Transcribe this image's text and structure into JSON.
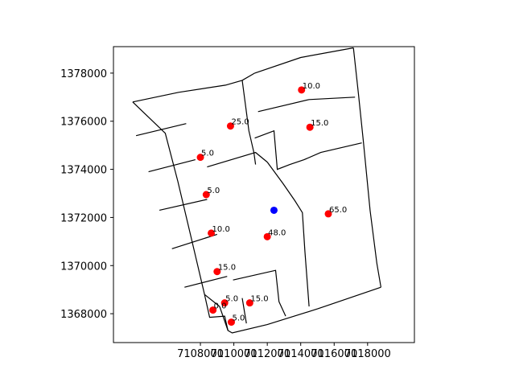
{
  "chart_data": {
    "type": "scatter",
    "title": "",
    "xlabel": "",
    "ylabel": "",
    "xlim": [
      7102800,
      7120800
    ],
    "ylim": [
      1366800,
      1379100
    ],
    "x_ticks": [
      {
        "value": 7108000,
        "label": "7108000"
      },
      {
        "value": 7110000,
        "label": "7110000"
      },
      {
        "value": 7112000,
        "label": "7112000"
      },
      {
        "value": 7114000,
        "label": "7114000"
      },
      {
        "value": 7116000,
        "label": "7116000"
      },
      {
        "value": 7118000,
        "label": "7118000"
      }
    ],
    "y_ticks": [
      {
        "value": 1368000,
        "label": "1368000"
      },
      {
        "value": 1370000,
        "label": "1370000"
      },
      {
        "value": 1372000,
        "label": "1372000"
      },
      {
        "value": 1374000,
        "label": "1374000"
      },
      {
        "value": 1376000,
        "label": "1376000"
      },
      {
        "value": 1378000,
        "label": "1378000"
      }
    ],
    "grid": false,
    "points": [
      {
        "x": 7114050,
        "y": 1377300,
        "label": "10.0"
      },
      {
        "x": 7109800,
        "y": 1375800,
        "label": "25.0"
      },
      {
        "x": 7114550,
        "y": 1375750,
        "label": "15.0"
      },
      {
        "x": 7108000,
        "y": 1374500,
        "label": "5.0"
      },
      {
        "x": 7108350,
        "y": 1372950,
        "label": "5.0"
      },
      {
        "x": 7115650,
        "y": 1372150,
        "label": "65.0"
      },
      {
        "x": 7108650,
        "y": 1371350,
        "label": "10.0"
      },
      {
        "x": 7112000,
        "y": 1371200,
        "label": "48.0"
      },
      {
        "x": 7109000,
        "y": 1369750,
        "label": "15.0"
      },
      {
        "x": 7109450,
        "y": 1368450,
        "label": "5.0"
      },
      {
        "x": 7110950,
        "y": 1368450,
        "label": "15.0"
      },
      {
        "x": 7108750,
        "y": 1368150,
        "label": "0.0"
      },
      {
        "x": 7109850,
        "y": 1367650,
        "label": "5.0"
      }
    ],
    "highlight_point": {
      "x": 7112400,
      "y": 1372300
    },
    "colors": {
      "points": "#ff0000",
      "highlight": "#0000ff",
      "outline": "#000000"
    },
    "boundaries": [
      [
        [
          7103950,
          1376800
        ],
        [
          7106700,
          1377200
        ],
        [
          7109500,
          1377500
        ],
        [
          7110500,
          1377700
        ],
        [
          7111250,
          1378000
        ]
      ],
      [
        [
          7111250,
          1378000
        ],
        [
          7114000,
          1378650
        ],
        [
          7117150,
          1379050
        ]
      ],
      [
        [
          7117150,
          1379050
        ],
        [
          7117450,
          1377150
        ],
        [
          7117750,
          1375150
        ],
        [
          7118150,
          1372300
        ],
        [
          7118150,
          1372300
        ],
        [
          7118550,
          1370100
        ],
        [
          7118800,
          1369100
        ]
      ],
      [
        [
          7118800,
          1369100
        ],
        [
          7115000,
          1368200
        ],
        [
          7112000,
          1367550
        ],
        [
          7109900,
          1367200
        ],
        [
          7109650,
          1367300
        ],
        [
          7109450,
          1367900
        ],
        [
          7108550,
          1367850
        ],
        [
          7108250,
          1368800
        ]
      ],
      [
        [
          7108250,
          1368800
        ],
        [
          7107400,
          1371300
        ],
        [
          7106650,
          1373500
        ],
        [
          7105900,
          1375500
        ],
        [
          7103950,
          1376800
        ]
      ],
      [
        [
          7104150,
          1375400
        ],
        [
          7107150,
          1375900
        ]
      ],
      [
        [
          7104900,
          1373900
        ],
        [
          7107700,
          1374400
        ]
      ],
      [
        [
          7105550,
          1372300
        ],
        [
          7108400,
          1372750
        ]
      ],
      [
        [
          7106300,
          1370700
        ],
        [
          7109000,
          1371300
        ]
      ],
      [
        [
          7107050,
          1369100
        ],
        [
          7109600,
          1369550
        ]
      ],
      [
        [
          7109950,
          1369400
        ],
        [
          7112500,
          1369800
        ],
        [
          7112700,
          1368500
        ],
        [
          7113100,
          1367900
        ]
      ],
      [
        [
          7108250,
          1368800
        ],
        [
          7109150,
          1368300
        ]
      ],
      [
        [
          7109150,
          1368300
        ],
        [
          7109650,
          1367300
        ]
      ],
      [
        [
          7110500,
          1368650
        ],
        [
          7110750,
          1367600
        ]
      ],
      [
        [
          7110500,
          1377700
        ],
        [
          7110900,
          1375600
        ],
        [
          7111200,
          1374700
        ],
        [
          7111300,
          1374200
        ]
      ],
      [
        [
          7108400,
          1374100
        ],
        [
          7111300,
          1374700
        ],
        [
          7112000,
          1374300
        ]
      ],
      [
        [
          7112000,
          1374300
        ],
        [
          7112950,
          1373400
        ],
        [
          7113650,
          1372700
        ],
        [
          7114100,
          1372200
        ],
        [
          7114250,
          1370600
        ],
        [
          7114500,
          1368300
        ]
      ],
      [
        [
          7111450,
          1376400
        ],
        [
          7114500,
          1376900
        ],
        [
          7117250,
          1377000
        ]
      ],
      [
        [
          7111250,
          1375300
        ],
        [
          7112400,
          1375600
        ],
        [
          7112600,
          1374000
        ],
        [
          7113350,
          1374200
        ],
        [
          7114200,
          1374400
        ],
        [
          7115200,
          1374700
        ],
        [
          7117650,
          1375100
        ]
      ]
    ]
  }
}
